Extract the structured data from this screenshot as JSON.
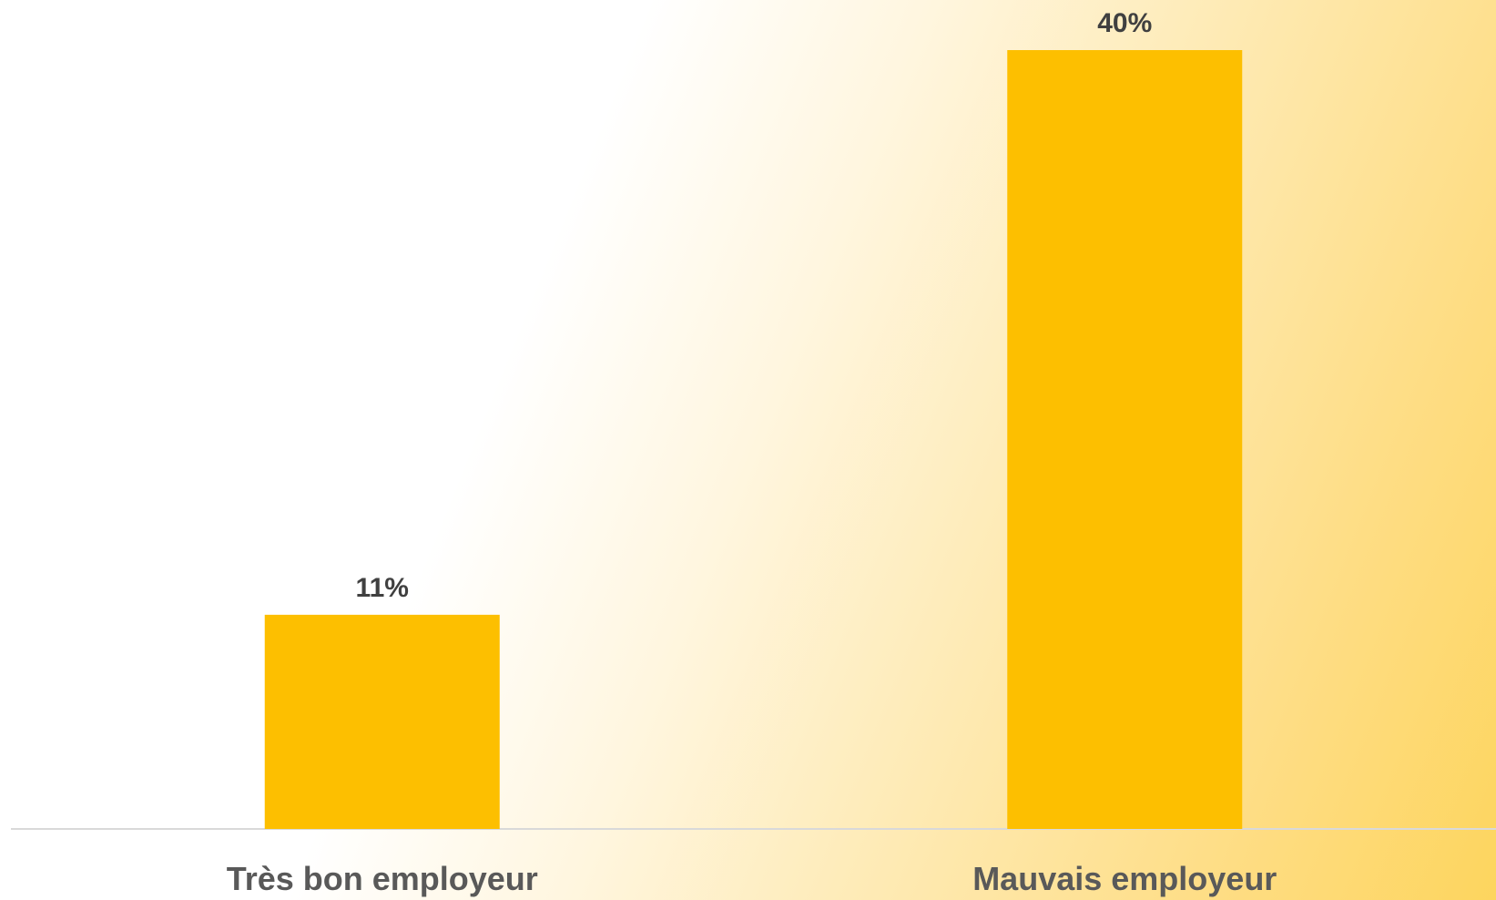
{
  "chart_data": {
    "type": "bar",
    "categories": [
      "Très bon employeur",
      "Mauvais employeur"
    ],
    "values": [
      11,
      40
    ],
    "data_labels": [
      "11%",
      "40%"
    ],
    "unit": "%",
    "title": "",
    "xlabel": "",
    "ylabel": "",
    "ylim": [
      0,
      40
    ],
    "grid": false,
    "legend": "none"
  },
  "colors": {
    "bar": "#fdbf00",
    "data_label": "#404040",
    "category_label": "#595959",
    "axis_line": "#d9d9d9",
    "background_start": "#ffffff",
    "background_end": "#fdd55e"
  }
}
